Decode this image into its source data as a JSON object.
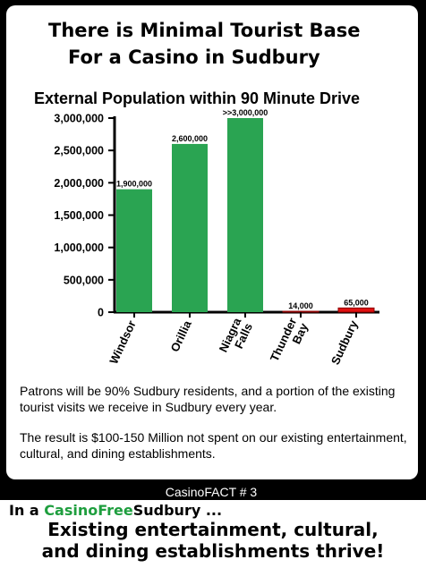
{
  "headline": {
    "line1": "There is Minimal Tourist Base",
    "line2": "For a Casino in Sudbury"
  },
  "chart_data": {
    "type": "bar",
    "title": "External Population within 90 Minute Drive",
    "categories": [
      "Windsor",
      "Orillia",
      "Niagra Falls",
      "Thunder Bay",
      "Sudbury"
    ],
    "category_lines": [
      [
        "Windsor"
      ],
      [
        "Orillia"
      ],
      [
        "Niagra",
        "Falls"
      ],
      [
        "Thunder",
        "Bay"
      ],
      [
        "Sudbury"
      ]
    ],
    "values": [
      1900000,
      2600000,
      3000000,
      14000,
      65000
    ],
    "data_labels": [
      "1,900,000",
      "2,600,000",
      ">>3,000,000",
      "14,000",
      "65,000"
    ],
    "bar_colors": [
      "#2aa452",
      "#2aa452",
      "#2aa452",
      "#e01010",
      "#e01010"
    ],
    "yticks": [
      0,
      500000,
      1000000,
      1500000,
      2000000,
      2500000,
      3000000
    ],
    "ytick_labels": [
      "0",
      "500,000",
      "1,000,000",
      "1,500,000",
      "2,000,000",
      "2,500,000",
      "3,000,000"
    ],
    "ylim": [
      0,
      3000000
    ],
    "grid": false,
    "xlabel": "",
    "ylabel": ""
  },
  "notes": {
    "para1": "Patrons will be 90% Sudbury residents, and a portion of the existing tourist visits we receive in Sudbury every year.",
    "para2": "The result is $100-150 Million not spent on our existing entertainment, cultural, and dining establishments."
  },
  "fact_label": "CasinoFACT # 3",
  "footer": {
    "tag_prefix": "In a",
    "brand_casino": "CasinoFree",
    "brand_sudbury": "Sudbury",
    "tag_suffix": "...",
    "slogan_line1": "Existing entertainment, cultural,",
    "slogan_line2": "and dining establishments thrive!"
  },
  "colors": {
    "green": "#2aa452",
    "red": "#e01010",
    "brand_green": "#1e9e3e",
    "background": "#000000"
  }
}
